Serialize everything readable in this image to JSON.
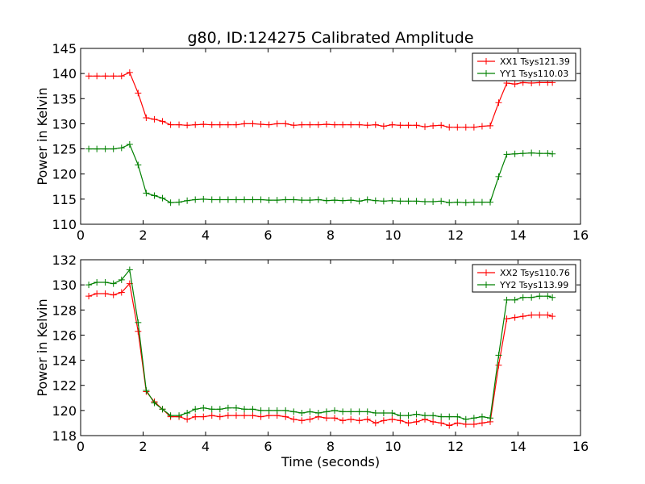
{
  "figure": {
    "title": "g80, ID:124275 Calibrated Amplitude",
    "xlabel": "Time (seconds)"
  },
  "chart_data": [
    {
      "type": "line",
      "ylabel": "Power in Kelvin",
      "xlim": [
        0,
        16
      ],
      "ylim": [
        110,
        145
      ],
      "xticks": [
        "0",
        "2",
        "4",
        "6",
        "8",
        "10",
        "12",
        "14",
        "16"
      ],
      "yticks": [
        "110",
        "115",
        "120",
        "125",
        "130",
        "135",
        "140",
        "145"
      ],
      "grid": false,
      "legend_position": "top-right",
      "x": [
        0.26,
        0.52,
        0.79,
        1.05,
        1.31,
        1.57,
        1.84,
        2.1,
        2.36,
        2.62,
        2.88,
        3.15,
        3.41,
        3.67,
        3.93,
        4.2,
        4.46,
        4.72,
        4.98,
        5.24,
        5.51,
        5.77,
        6.03,
        6.29,
        6.56,
        6.82,
        7.08,
        7.34,
        7.61,
        7.87,
        8.13,
        8.39,
        8.65,
        8.92,
        9.18,
        9.44,
        9.7,
        9.97,
        10.23,
        10.49,
        10.75,
        11.02,
        11.28,
        11.54,
        11.8,
        12.06,
        12.33,
        12.59,
        12.85,
        13.11,
        13.38,
        13.64,
        13.9,
        14.16,
        14.43,
        14.69,
        14.95,
        15.1
      ],
      "series": [
        {
          "name": "XX1 Tsys121.39",
          "color": "#ff0000",
          "values": [
            139.5,
            139.5,
            139.5,
            139.5,
            139.5,
            140.2,
            136.1,
            131.2,
            130.9,
            130.5,
            129.8,
            129.8,
            129.7,
            129.8,
            129.9,
            129.8,
            129.8,
            129.8,
            129.8,
            130.0,
            130.0,
            129.9,
            129.8,
            130.0,
            130.0,
            129.7,
            129.8,
            129.8,
            129.8,
            129.9,
            129.8,
            129.8,
            129.8,
            129.8,
            129.7,
            129.8,
            129.5,
            129.8,
            129.7,
            129.7,
            129.7,
            129.4,
            129.6,
            129.7,
            129.3,
            129.3,
            129.3,
            129.3,
            129.5,
            129.6,
            134.2,
            138.1,
            137.9,
            138.2,
            138.1,
            138.2,
            138.2,
            138.2
          ]
        },
        {
          "name": "YY1 Tsys110.03",
          "color": "#008000",
          "values": [
            125.0,
            125.0,
            125.0,
            125.0,
            125.2,
            125.9,
            121.8,
            116.2,
            115.7,
            115.2,
            114.3,
            114.4,
            114.7,
            114.9,
            115.0,
            114.9,
            114.9,
            114.9,
            114.9,
            114.9,
            114.9,
            114.9,
            114.8,
            114.8,
            114.9,
            114.9,
            114.8,
            114.8,
            114.9,
            114.7,
            114.8,
            114.7,
            114.8,
            114.6,
            114.9,
            114.7,
            114.6,
            114.7,
            114.6,
            114.6,
            114.6,
            114.5,
            114.5,
            114.6,
            114.3,
            114.4,
            114.3,
            114.4,
            114.4,
            114.4,
            119.5,
            123.9,
            124.0,
            124.1,
            124.2,
            124.1,
            124.1,
            124.0
          ]
        }
      ]
    },
    {
      "type": "line",
      "ylabel": "Power in Kelvin",
      "xlabel": "Time (seconds)",
      "xlim": [
        0,
        16
      ],
      "ylim": [
        118,
        132
      ],
      "xticks": [
        "0",
        "2",
        "4",
        "6",
        "8",
        "10",
        "12",
        "14",
        "16"
      ],
      "yticks": [
        "118",
        "120",
        "122",
        "124",
        "126",
        "128",
        "130",
        "132"
      ],
      "grid": false,
      "legend_position": "top-right",
      "x": [
        0.26,
        0.52,
        0.79,
        1.05,
        1.31,
        1.57,
        1.84,
        2.1,
        2.36,
        2.62,
        2.88,
        3.15,
        3.41,
        3.67,
        3.93,
        4.2,
        4.46,
        4.72,
        4.98,
        5.24,
        5.51,
        5.77,
        6.03,
        6.29,
        6.56,
        6.82,
        7.08,
        7.34,
        7.61,
        7.87,
        8.13,
        8.39,
        8.65,
        8.92,
        9.18,
        9.44,
        9.7,
        9.97,
        10.23,
        10.49,
        10.75,
        11.02,
        11.28,
        11.54,
        11.8,
        12.06,
        12.33,
        12.59,
        12.85,
        13.11,
        13.38,
        13.64,
        13.9,
        14.16,
        14.43,
        14.69,
        14.95,
        15.1
      ],
      "series": [
        {
          "name": "XX2 Tsys110.76",
          "color": "#ff0000",
          "values": [
            129.1,
            129.3,
            129.3,
            129.2,
            129.4,
            130.1,
            126.3,
            121.5,
            120.7,
            120.1,
            119.5,
            119.5,
            119.3,
            119.5,
            119.5,
            119.6,
            119.5,
            119.6,
            119.6,
            119.6,
            119.6,
            119.5,
            119.6,
            119.6,
            119.5,
            119.3,
            119.2,
            119.3,
            119.5,
            119.4,
            119.4,
            119.2,
            119.3,
            119.2,
            119.3,
            119.0,
            119.2,
            119.3,
            119.2,
            119.0,
            119.1,
            119.3,
            119.1,
            119.0,
            118.8,
            119.0,
            118.9,
            118.9,
            119.0,
            119.1,
            123.6,
            127.3,
            127.4,
            127.5,
            127.6,
            127.6,
            127.6,
            127.5
          ]
        },
        {
          "name": "YY2 Tsys113.99",
          "color": "#008000",
          "values": [
            130.0,
            130.2,
            130.2,
            130.1,
            130.4,
            131.2,
            127.0,
            121.6,
            120.6,
            120.1,
            119.6,
            119.6,
            119.8,
            120.1,
            120.2,
            120.1,
            120.1,
            120.2,
            120.2,
            120.1,
            120.1,
            120.0,
            120.0,
            120.0,
            120.0,
            119.9,
            119.8,
            119.9,
            119.8,
            119.9,
            120.0,
            119.9,
            119.9,
            119.9,
            119.9,
            119.8,
            119.8,
            119.8,
            119.6,
            119.6,
            119.7,
            119.6,
            119.6,
            119.5,
            119.5,
            119.5,
            119.3,
            119.4,
            119.5,
            119.4,
            124.4,
            128.8,
            128.8,
            129.0,
            129.0,
            129.1,
            129.1,
            129.0
          ]
        }
      ]
    }
  ]
}
